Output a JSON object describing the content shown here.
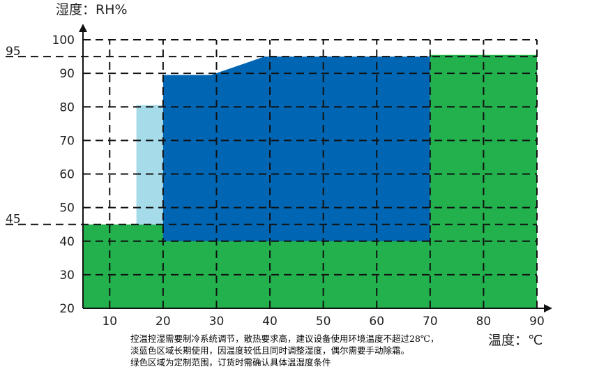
{
  "chart_data": {
    "type": "area",
    "title": "",
    "xlabel": "温度：℃",
    "ylabel": "湿度：RH%",
    "xlim": [
      5,
      90
    ],
    "ylim": [
      20,
      100
    ],
    "x_ticks": [
      10,
      20,
      30,
      40,
      50,
      60,
      70,
      80,
      90
    ],
    "y_ticks": [
      20,
      30,
      40,
      50,
      60,
      70,
      80,
      90,
      100
    ],
    "grid": true,
    "reference_lines": [
      {
        "axis": "y",
        "value": 95,
        "label": "95"
      },
      {
        "axis": "y",
        "value": 45,
        "label": "45"
      }
    ],
    "regions": [
      {
        "id": "green",
        "color": "#22b14c",
        "polygon": [
          [
            5,
            20
          ],
          [
            5,
            45
          ],
          [
            70,
            45
          ],
          [
            70,
            95.5
          ],
          [
            90,
            95.5
          ],
          [
            90,
            20
          ]
        ]
      },
      {
        "id": "light-blue",
        "color": "#a6dbe9",
        "polygon": [
          [
            15,
            45
          ],
          [
            15,
            80.5
          ],
          [
            20,
            80.5
          ],
          [
            20,
            45
          ]
        ]
      },
      {
        "id": "blue",
        "color": "#0066b3",
        "polygon": [
          [
            20,
            40
          ],
          [
            20,
            89.5
          ],
          [
            29,
            89.5
          ],
          [
            39,
            95
          ],
          [
            70,
            95
          ],
          [
            70,
            40
          ]
        ]
      }
    ]
  },
  "notes": [
    "控温控湿需要制冷系统调节，散热要求高，建议设备使用环境温度不超过28℃，",
    "淡蓝色区域长期使用，因温度较低且同时调整湿度，偶尔需要手动除霜。",
    "绿色区域为定制范围，订货时需确认具体温湿度条件"
  ]
}
